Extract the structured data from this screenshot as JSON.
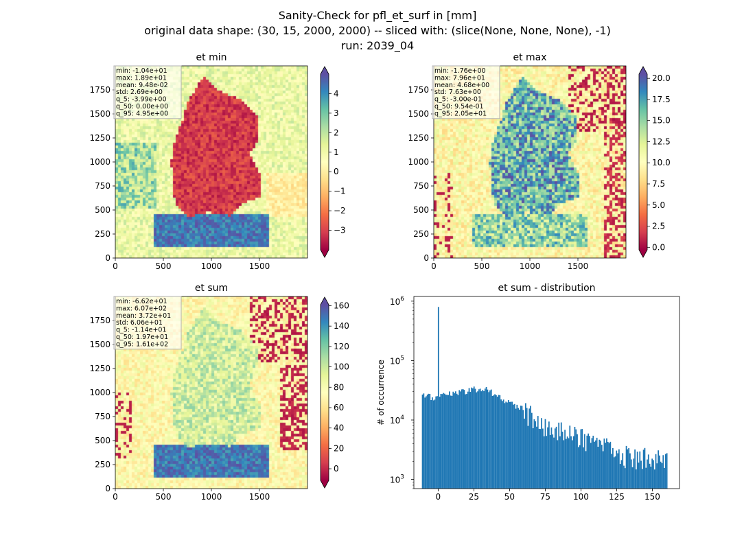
{
  "figure": {
    "suptitle_lines": [
      "Sanity-Check for pfl_et_surf in [mm]",
      "original data shape: (30, 15, 2000, 2000) -- sliced with: (slice(None, None, None), -1)",
      "run: 2039_04"
    ]
  },
  "colormap": [
    "#9e0142",
    "#d53e4f",
    "#f46d43",
    "#fdae61",
    "#fee08b",
    "#ffffbf",
    "#e6f598",
    "#abdda4",
    "#66c2a5",
    "#3288bd",
    "#5e4fa2"
  ],
  "chart_data": [
    {
      "type": "heatmap",
      "title": "et min",
      "xticks": [
        0,
        500,
        1000,
        1500
      ],
      "yticks": [
        0,
        250,
        500,
        750,
        1000,
        1250,
        1500,
        1750
      ],
      "xlim": [
        0,
        2000
      ],
      "ylim": [
        0,
        2000
      ],
      "colorbar": {
        "vmin": -4.0,
        "vmax": 5.0,
        "ticks": [
          -3,
          -2,
          -1,
          0,
          1,
          2,
          3,
          4
        ],
        "tick_labels": [
          "−3",
          "−2",
          "−1",
          "0",
          "1",
          "2",
          "3",
          "4"
        ],
        "extend": "both"
      },
      "stats": [
        "min: -1.04e+01",
        "max: 1.89e+01",
        "mean: 9.48e-02",
        "std: 2.69e+00",
        "q_5: -3.99e+00",
        "q_50: 0.00e+00",
        "q_95: 4.95e+00"
      ]
    },
    {
      "type": "heatmap",
      "title": "et max",
      "xticks": [
        0,
        500,
        1000,
        1500
      ],
      "yticks": [
        0,
        250,
        500,
        750,
        1000,
        1250,
        1500,
        1750
      ],
      "xlim": [
        0,
        2000
      ],
      "ylim": [
        0,
        2000
      ],
      "colorbar": {
        "vmin": -0.3,
        "vmax": 20.5,
        "ticks": [
          0.0,
          2.5,
          5.0,
          7.5,
          10.0,
          12.5,
          15.0,
          17.5,
          20.0
        ],
        "tick_labels": [
          "0.0",
          "2.5",
          "5.0",
          "7.5",
          "10.0",
          "12.5",
          "15.0",
          "17.5",
          "20.0"
        ],
        "extend": "both"
      },
      "stats": [
        "min: -1.76e+00",
        "max: 7.96e+01",
        "mean: 4.68e+00",
        "std: 7.63e+00",
        "q_5: -3.00e-01",
        "q_50: 9.54e-01",
        "q_95: 2.05e+01"
      ]
    },
    {
      "type": "heatmap",
      "title": "et sum",
      "xticks": [
        0,
        500,
        1000,
        1500
      ],
      "yticks": [
        0,
        250,
        500,
        750,
        1000,
        1250,
        1500,
        1750
      ],
      "xlim": [
        0,
        2000
      ],
      "ylim": [
        0,
        2000
      ],
      "colorbar": {
        "vmin": -11.4,
        "vmax": 161,
        "ticks": [
          0,
          20,
          40,
          60,
          80,
          100,
          120,
          140,
          160
        ],
        "tick_labels": [
          "0",
          "20",
          "40",
          "60",
          "80",
          "100",
          "120",
          "140",
          "160"
        ],
        "extend": "both"
      },
      "stats": [
        "min: -6.62e+01",
        "max: 6.07e+02",
        "mean: 3.72e+01",
        "std: 6.06e+01",
        "q_5: -1.14e+01",
        "q_50: 1.97e+01",
        "q_95: 1.61e+02"
      ]
    },
    {
      "type": "bar",
      "title": "et sum - distribution",
      "ylabel": "# of occurrence",
      "yscale": "log",
      "xlim": [
        -17,
        169
      ],
      "ylim": [
        700,
        1200000
      ],
      "xticks": [
        0,
        25,
        50,
        75,
        100,
        125,
        150
      ],
      "yticks": [
        1000,
        10000,
        100000,
        1000000
      ],
      "ytick_labels": [
        [
          "10",
          "3"
        ],
        [
          "10",
          "4"
        ],
        [
          "10",
          "5"
        ],
        [
          "10",
          "6"
        ]
      ],
      "color": "#1f77b4",
      "bin_range": [
        -11.4,
        160.6
      ],
      "spike": {
        "x": 0,
        "count": 800000
      },
      "approx_counts": [
        {
          "x": -10,
          "count": 25000
        },
        {
          "x": 0,
          "count": 24000
        },
        {
          "x": 10,
          "count": 28000
        },
        {
          "x": 25,
          "count": 33000
        },
        {
          "x": 35,
          "count": 32000
        },
        {
          "x": 45,
          "count": 22000
        },
        {
          "x": 60,
          "count": 15000
        },
        {
          "x": 75,
          "count": 9000
        },
        {
          "x": 100,
          "count": 5000
        },
        {
          "x": 125,
          "count": 3000
        },
        {
          "x": 160,
          "count": 2000
        }
      ]
    }
  ]
}
